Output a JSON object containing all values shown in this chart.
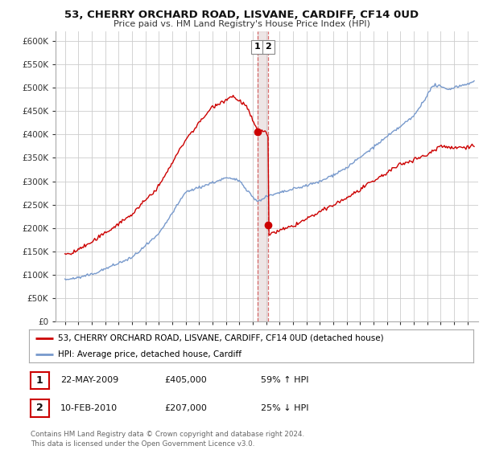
{
  "title": "53, CHERRY ORCHARD ROAD, LISVANE, CARDIFF, CF14 0UD",
  "subtitle": "Price paid vs. HM Land Registry's House Price Index (HPI)",
  "legend_line1": "53, CHERRY ORCHARD ROAD, LISVANE, CARDIFF, CF14 0UD (detached house)",
  "legend_line2": "HPI: Average price, detached house, Cardiff",
  "transaction1_date": "22-MAY-2009",
  "transaction1_price": "£405,000",
  "transaction1_hpi": "59% ↑ HPI",
  "transaction2_date": "10-FEB-2010",
  "transaction2_price": "£207,000",
  "transaction2_hpi": "25% ↓ HPI",
  "footer": "Contains HM Land Registry data © Crown copyright and database right 2024.\nThis data is licensed under the Open Government Licence v3.0.",
  "property_color": "#cc0000",
  "hpi_color": "#7799cc",
  "marker_color": "#cc0000",
  "vline_color": "#cc3333",
  "vband_color": "#ddcccc",
  "background_color": "#ffffff",
  "ylim": [
    0,
    600000
  ],
  "yticks": [
    0,
    50000,
    100000,
    150000,
    200000,
    250000,
    300000,
    350000,
    400000,
    450000,
    500000,
    550000,
    600000
  ],
  "transaction1_year": 2009.38,
  "transaction1_value": 405000,
  "transaction2_year": 2010.11,
  "transaction2_value": 207000
}
